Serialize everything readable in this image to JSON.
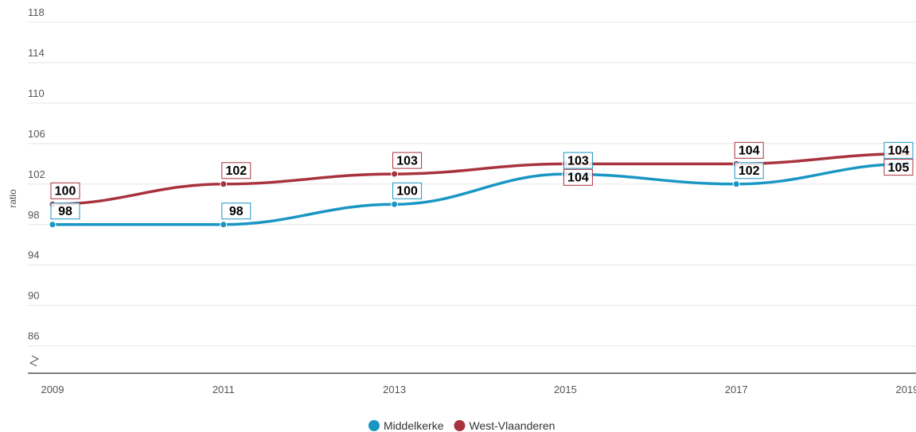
{
  "chart_data": {
    "type": "line",
    "y_label": "ratio",
    "x": [
      2009,
      2011,
      2013,
      2015,
      2017,
      2019
    ],
    "xlim": [
      2009,
      2019
    ],
    "xticks": [
      2009,
      2011,
      2013,
      2015,
      2017,
      2019
    ],
    "ylim": [
      83.3,
      118
    ],
    "yticks": [
      86,
      90,
      94,
      98,
      102,
      106,
      110,
      114,
      118
    ],
    "grid": true,
    "legend": "bottom",
    "series": [
      {
        "name": "Middelkerke",
        "color": "#1a96c4",
        "values": [
          98,
          98,
          100,
          103,
          102,
          104
        ]
      },
      {
        "name": "West-Vlaanderen",
        "color": "#a8323e",
        "values": [
          100,
          102,
          103,
          104,
          104,
          105
        ]
      }
    ]
  }
}
